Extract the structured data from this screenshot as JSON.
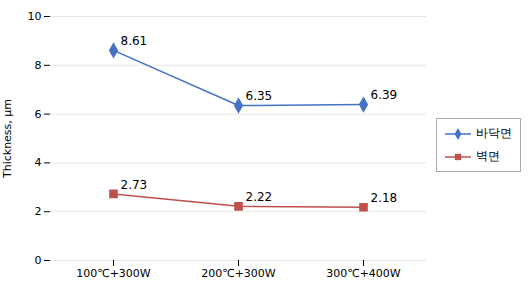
{
  "chart_data": {
    "type": "line",
    "categories": [
      "100℃+300W",
      "200℃+300W",
      "300℃+400W"
    ],
    "series": [
      {
        "name": "바닥면",
        "color": "#4472C4",
        "values": [
          8.61,
          6.35,
          6.39
        ],
        "marker": "diamond"
      },
      {
        "name": "벽면",
        "color": "#C0504D",
        "values": [
          2.73,
          2.22,
          2.18
        ],
        "marker": "square"
      }
    ],
    "ylabel": "Thickness, μm",
    "ylim": [
      0,
      10
    ],
    "yticks": [
      0,
      2,
      4,
      6,
      8,
      10
    ],
    "grid": true,
    "legend": "right",
    "data_labels": true
  }
}
